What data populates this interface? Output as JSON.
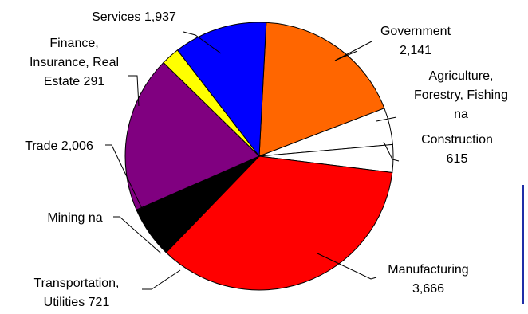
{
  "chart_data": {
    "type": "pie",
    "title": "",
    "slices": [
      {
        "label": "Government",
        "value": 2141,
        "display": "Government\n2,141",
        "color": "#ff6600"
      },
      {
        "label": "Agriculture, Forestry, Fishing",
        "value": null,
        "display": "Agriculture,\nForestry, Fishing\nna",
        "color": "#ffffff"
      },
      {
        "label": "Construction",
        "value": 615,
        "display": "Construction\n615",
        "color": "#ffffff"
      },
      {
        "label": "Manufacturing",
        "value": 3666,
        "display": "Manufacturing\n3,666",
        "color": "#ff0000"
      },
      {
        "label": "Transportation, Utilities",
        "value": 721,
        "display": "Transportation,\nUtilities 721",
        "color": "#000000"
      },
      {
        "label": "Mining",
        "value": null,
        "display": "Mining na",
        "color": "#800080"
      },
      {
        "label": "Trade",
        "value": 2006,
        "display": "Trade 2,006",
        "color": "#800080"
      },
      {
        "label": "Finance, Insurance, Real Estate",
        "value": 291,
        "display": "Finance,\nInsurance, Real\nEstate 291",
        "color": "#ffff00"
      },
      {
        "label": "Services",
        "value": 1937,
        "display": "Services 1,937",
        "color": "#0000ff"
      }
    ]
  }
}
